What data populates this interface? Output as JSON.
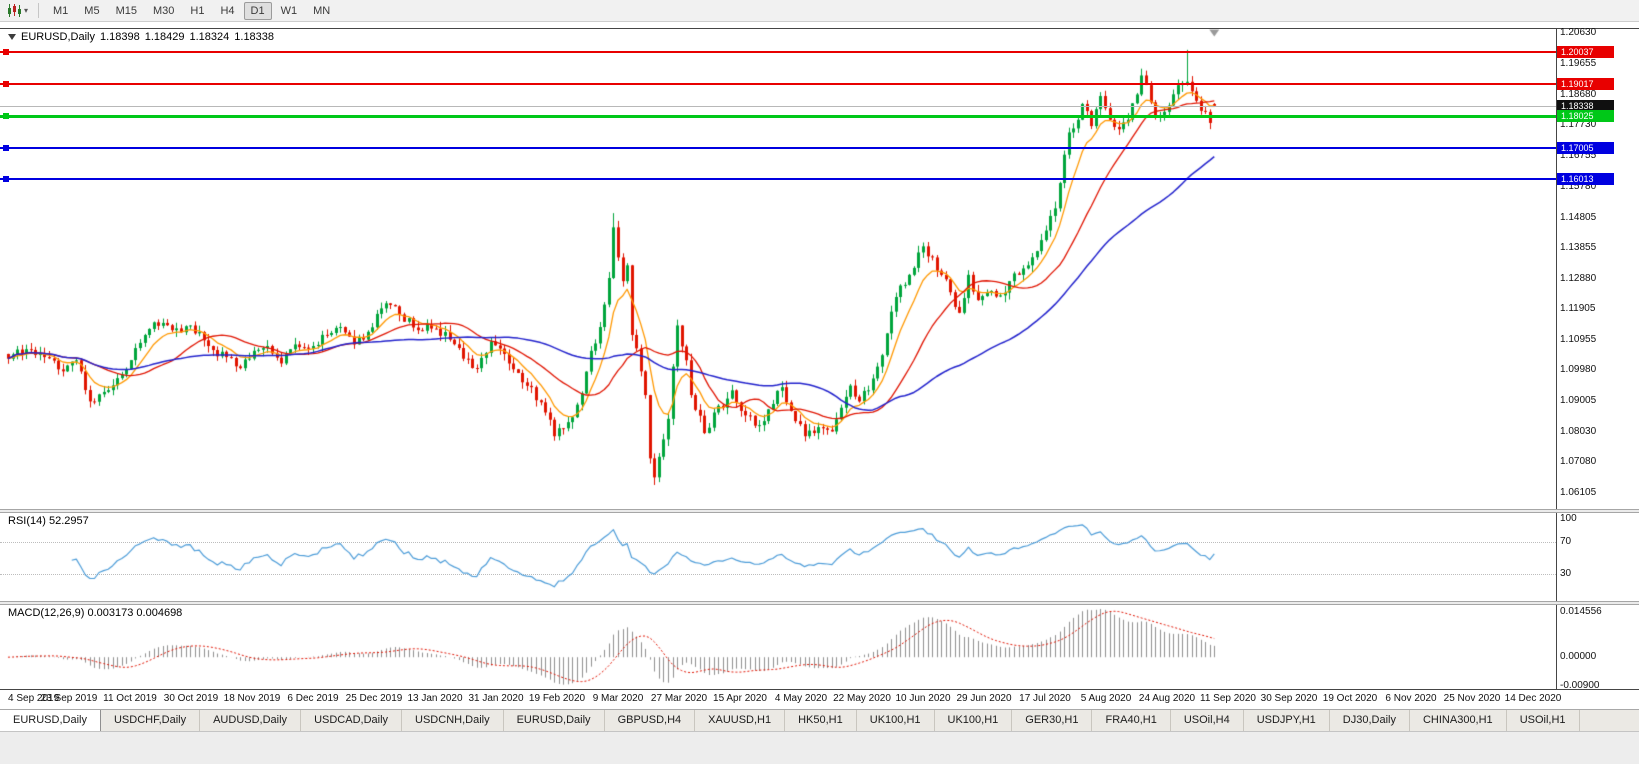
{
  "toolbar": {
    "timeframes": [
      "M1",
      "M5",
      "M15",
      "M30",
      "H1",
      "H4",
      "D1",
      "W1",
      "MN"
    ],
    "active_timeframe": "D1"
  },
  "chart": {
    "title": "EURUSD,Daily",
    "open": "1.18398",
    "high": "1.18429",
    "low": "1.18324",
    "close": "1.18338",
    "current_price": "1.18338",
    "price_axis": [
      "1.20630",
      "1.19655",
      "1.18680",
      "1.17730",
      "1.16755",
      "1.15780",
      "1.14805",
      "1.13855",
      "1.12880",
      "1.11905",
      "1.10955",
      "1.09980",
      "1.09005",
      "1.08030",
      "1.07080",
      "1.06105"
    ],
    "levels": [
      {
        "name": "resistance-line-1",
        "label": "1.20037",
        "price": 1.20037,
        "color": "#e80000",
        "thickness": 2
      },
      {
        "name": "resistance-line-2",
        "label": "1.19017",
        "price": 1.19017,
        "color": "#e80000",
        "thickness": 2
      },
      {
        "name": "pivot-line",
        "label": "1.18025",
        "price": 1.18025,
        "color": "#00c818",
        "thickness": 3
      },
      {
        "name": "support-line-1",
        "label": "1.17005",
        "price": 1.17005,
        "color": "#0000e0",
        "thickness": 2
      },
      {
        "name": "support-line-2",
        "label": "1.16013",
        "price": 1.16013,
        "color": "#0000e0",
        "thickness": 2
      }
    ]
  },
  "rsi": {
    "label": "RSI(14)",
    "value": "52.2957",
    "axis": [
      "100",
      "70",
      "30"
    ],
    "level_lines": [
      70,
      30
    ]
  },
  "macd": {
    "label": "MACD(12,26,9)",
    "values": "0.003173 0.004698",
    "axis": [
      "0.014556",
      "0.00000",
      "-0.00900"
    ]
  },
  "date_axis": [
    "4 Sep 2019",
    "23 Sep 2019",
    "11 Oct 2019",
    "30 Oct 2019",
    "18 Nov 2019",
    "6 Dec 2019",
    "25 Dec 2019",
    "13 Jan 2020",
    "31 Jan 2020",
    "19 Feb 2020",
    "9 Mar 2020",
    "27 Mar 2020",
    "15 Apr 2020",
    "4 May 2020",
    "22 May 2020",
    "10 Jun 2020",
    "29 Jun 2020",
    "17 Jul 2020",
    "5 Aug 2020",
    "24 Aug 2020",
    "11 Sep 2020",
    "30 Sep 2020",
    "19 Oct 2020",
    "6 Nov 2020",
    "25 Nov 2020",
    "14 Dec 2020"
  ],
  "tabs": [
    "EURUSD,Daily",
    "USDCHF,Daily",
    "AUDUSD,Daily",
    "USDCAD,Daily",
    "USDCNH,Daily",
    "EURUSD,Daily",
    "GBPUSD,H4",
    "XAUUSD,H1",
    "HK50,H1",
    "UK100,H1",
    "UK100,H1",
    "GER30,H1",
    "FRA40,H1",
    "USOil,H4",
    "USDJPY,H1",
    "DJ30,Daily",
    "CHINA300,H1",
    "USOil,H1"
  ],
  "active_tab_index": 0,
  "chart_data": {
    "type": "candlestick",
    "symbol": "EURUSD",
    "period": "Daily",
    "title": "EURUSD,Daily",
    "visible_price_range": [
      1.0575,
      1.208
    ],
    "first_visible_date": "4 Sep 2019",
    "bars_total": 266,
    "last_bar": {
      "open": 1.18398,
      "high": 1.18429,
      "low": 1.18324,
      "close": 1.18338
    },
    "price_anchors": [
      [
        0,
        1.1035
      ],
      [
        4,
        1.1065
      ],
      [
        8,
        1.104
      ],
      [
        12,
        1.0995
      ],
      [
        15,
        1.103
      ],
      [
        18,
        1.09
      ],
      [
        21,
        1.093
      ],
      [
        25,
        1.0985
      ],
      [
        29,
        1.1085
      ],
      [
        32,
        1.115
      ],
      [
        36,
        1.1125
      ],
      [
        40,
        1.114
      ],
      [
        44,
        1.1075
      ],
      [
        48,
        1.104
      ],
      [
        51,
        1.1005
      ],
      [
        54,
        1.106
      ],
      [
        57,
        1.1075
      ],
      [
        60,
        1.102
      ],
      [
        63,
        1.108
      ],
      [
        67,
        1.1075
      ],
      [
        70,
        1.111
      ],
      [
        73,
        1.1135
      ],
      [
        76,
        1.108
      ],
      [
        79,
        1.112
      ],
      [
        83,
        1.121
      ],
      [
        86,
        1.1175
      ],
      [
        90,
        1.1125
      ],
      [
        94,
        1.113
      ],
      [
        97,
        1.1095
      ],
      [
        100,
        1.1035
      ],
      [
        103,
        1.1005
      ],
      [
        106,
        1.109
      ],
      [
        109,
        1.105
      ],
      [
        112,
        1.099
      ],
      [
        115,
        1.0945
      ],
      [
        118,
        1.0865
      ],
      [
        120,
        1.079
      ],
      [
        122,
        1.0815
      ],
      [
        124,
        1.085
      ],
      [
        126,
        1.0925
      ],
      [
        128,
        1.106
      ],
      [
        130,
        1.1135
      ],
      [
        132,
        1.129
      ],
      [
        133,
        1.145
      ],
      [
        134,
        1.1355
      ],
      [
        135,
        1.128
      ],
      [
        136,
        1.133
      ],
      [
        137,
        1.111
      ],
      [
        139,
        1.0995
      ],
      [
        140,
        1.092
      ],
      [
        141,
        1.072
      ],
      [
        142,
        1.066
      ],
      [
        143,
        1.0725
      ],
      [
        144,
        1.078
      ],
      [
        145,
        1.0845
      ],
      [
        146,
        1.101
      ],
      [
        147,
        1.114
      ],
      [
        149,
        1.103
      ],
      [
        150,
        1.092
      ],
      [
        152,
        1.0855
      ],
      [
        153,
        1.08
      ],
      [
        155,
        1.0865
      ],
      [
        157,
        1.088
      ],
      [
        159,
        1.0935
      ],
      [
        161,
        1.087
      ],
      [
        163,
        1.0855
      ],
      [
        165,
        1.0825
      ],
      [
        167,
        1.0875
      ],
      [
        170,
        1.0945
      ],
      [
        172,
        1.087
      ],
      [
        175,
        1.079
      ],
      [
        177,
        1.08
      ],
      [
        179,
        1.0815
      ],
      [
        181,
        1.0805
      ],
      [
        183,
        1.088
      ],
      [
        185,
        1.095
      ],
      [
        187,
        1.09
      ],
      [
        189,
        1.0935
      ],
      [
        191,
        1.101
      ],
      [
        193,
        1.1115
      ],
      [
        195,
        1.123
      ],
      [
        198,
        1.13
      ],
      [
        201,
        1.139
      ],
      [
        203,
        1.1355
      ],
      [
        205,
        1.13
      ],
      [
        207,
        1.1245
      ],
      [
        209,
        1.118
      ],
      [
        211,
        1.13
      ],
      [
        213,
        1.122
      ],
      [
        215,
        1.1245
      ],
      [
        218,
        1.1235
      ],
      [
        220,
        1.128
      ],
      [
        222,
        1.13
      ],
      [
        224,
        1.133
      ],
      [
        226,
        1.1375
      ],
      [
        228,
        1.144
      ],
      [
        230,
        1.151
      ],
      [
        231,
        1.159
      ],
      [
        233,
        1.175
      ],
      [
        235,
        1.179
      ],
      [
        236,
        1.184
      ],
      [
        238,
        1.177
      ],
      [
        240,
        1.1865
      ],
      [
        242,
        1.179
      ],
      [
        244,
        1.176
      ],
      [
        246,
        1.179
      ],
      [
        248,
        1.187
      ],
      [
        249,
        1.193
      ],
      [
        251,
        1.1845
      ],
      [
        252,
        1.18
      ],
      [
        254,
        1.1815
      ],
      [
        255,
        1.1835
      ],
      [
        257,
        1.19
      ],
      [
        259,
        1.191
      ],
      [
        260,
        1.188
      ],
      [
        261,
        1.185
      ],
      [
        263,
        1.1815
      ],
      [
        264,
        1.178
      ],
      [
        265,
        1.18338
      ]
    ],
    "extremes": [
      {
        "i": 133,
        "high": 1.1495
      },
      {
        "i": 142,
        "low": 1.0636
      },
      {
        "i": 259,
        "high": 1.2011
      }
    ],
    "horizontal_levels": [
      1.20037,
      1.19017,
      1.18025,
      1.17005,
      1.16013
    ],
    "indicators": {
      "rsi": {
        "period": 14,
        "last": 52.2957,
        "levels": [
          70,
          30
        ]
      },
      "macd": {
        "fast": 12,
        "slow": 26,
        "signal": 9,
        "last_main": 0.003173,
        "last_signal": 0.004698,
        "axis_max": 0.014556,
        "axis_min": -0.009
      },
      "moving_averages": [
        {
          "type": "ema",
          "period": 8,
          "color": "#ff9800"
        },
        {
          "type": "sma",
          "period": 20,
          "color": "#e01400"
        },
        {
          "type": "sma",
          "period": 50,
          "color": "#2222cc"
        }
      ]
    },
    "up_color": "#00a53c",
    "down_color": "#e01400"
  }
}
